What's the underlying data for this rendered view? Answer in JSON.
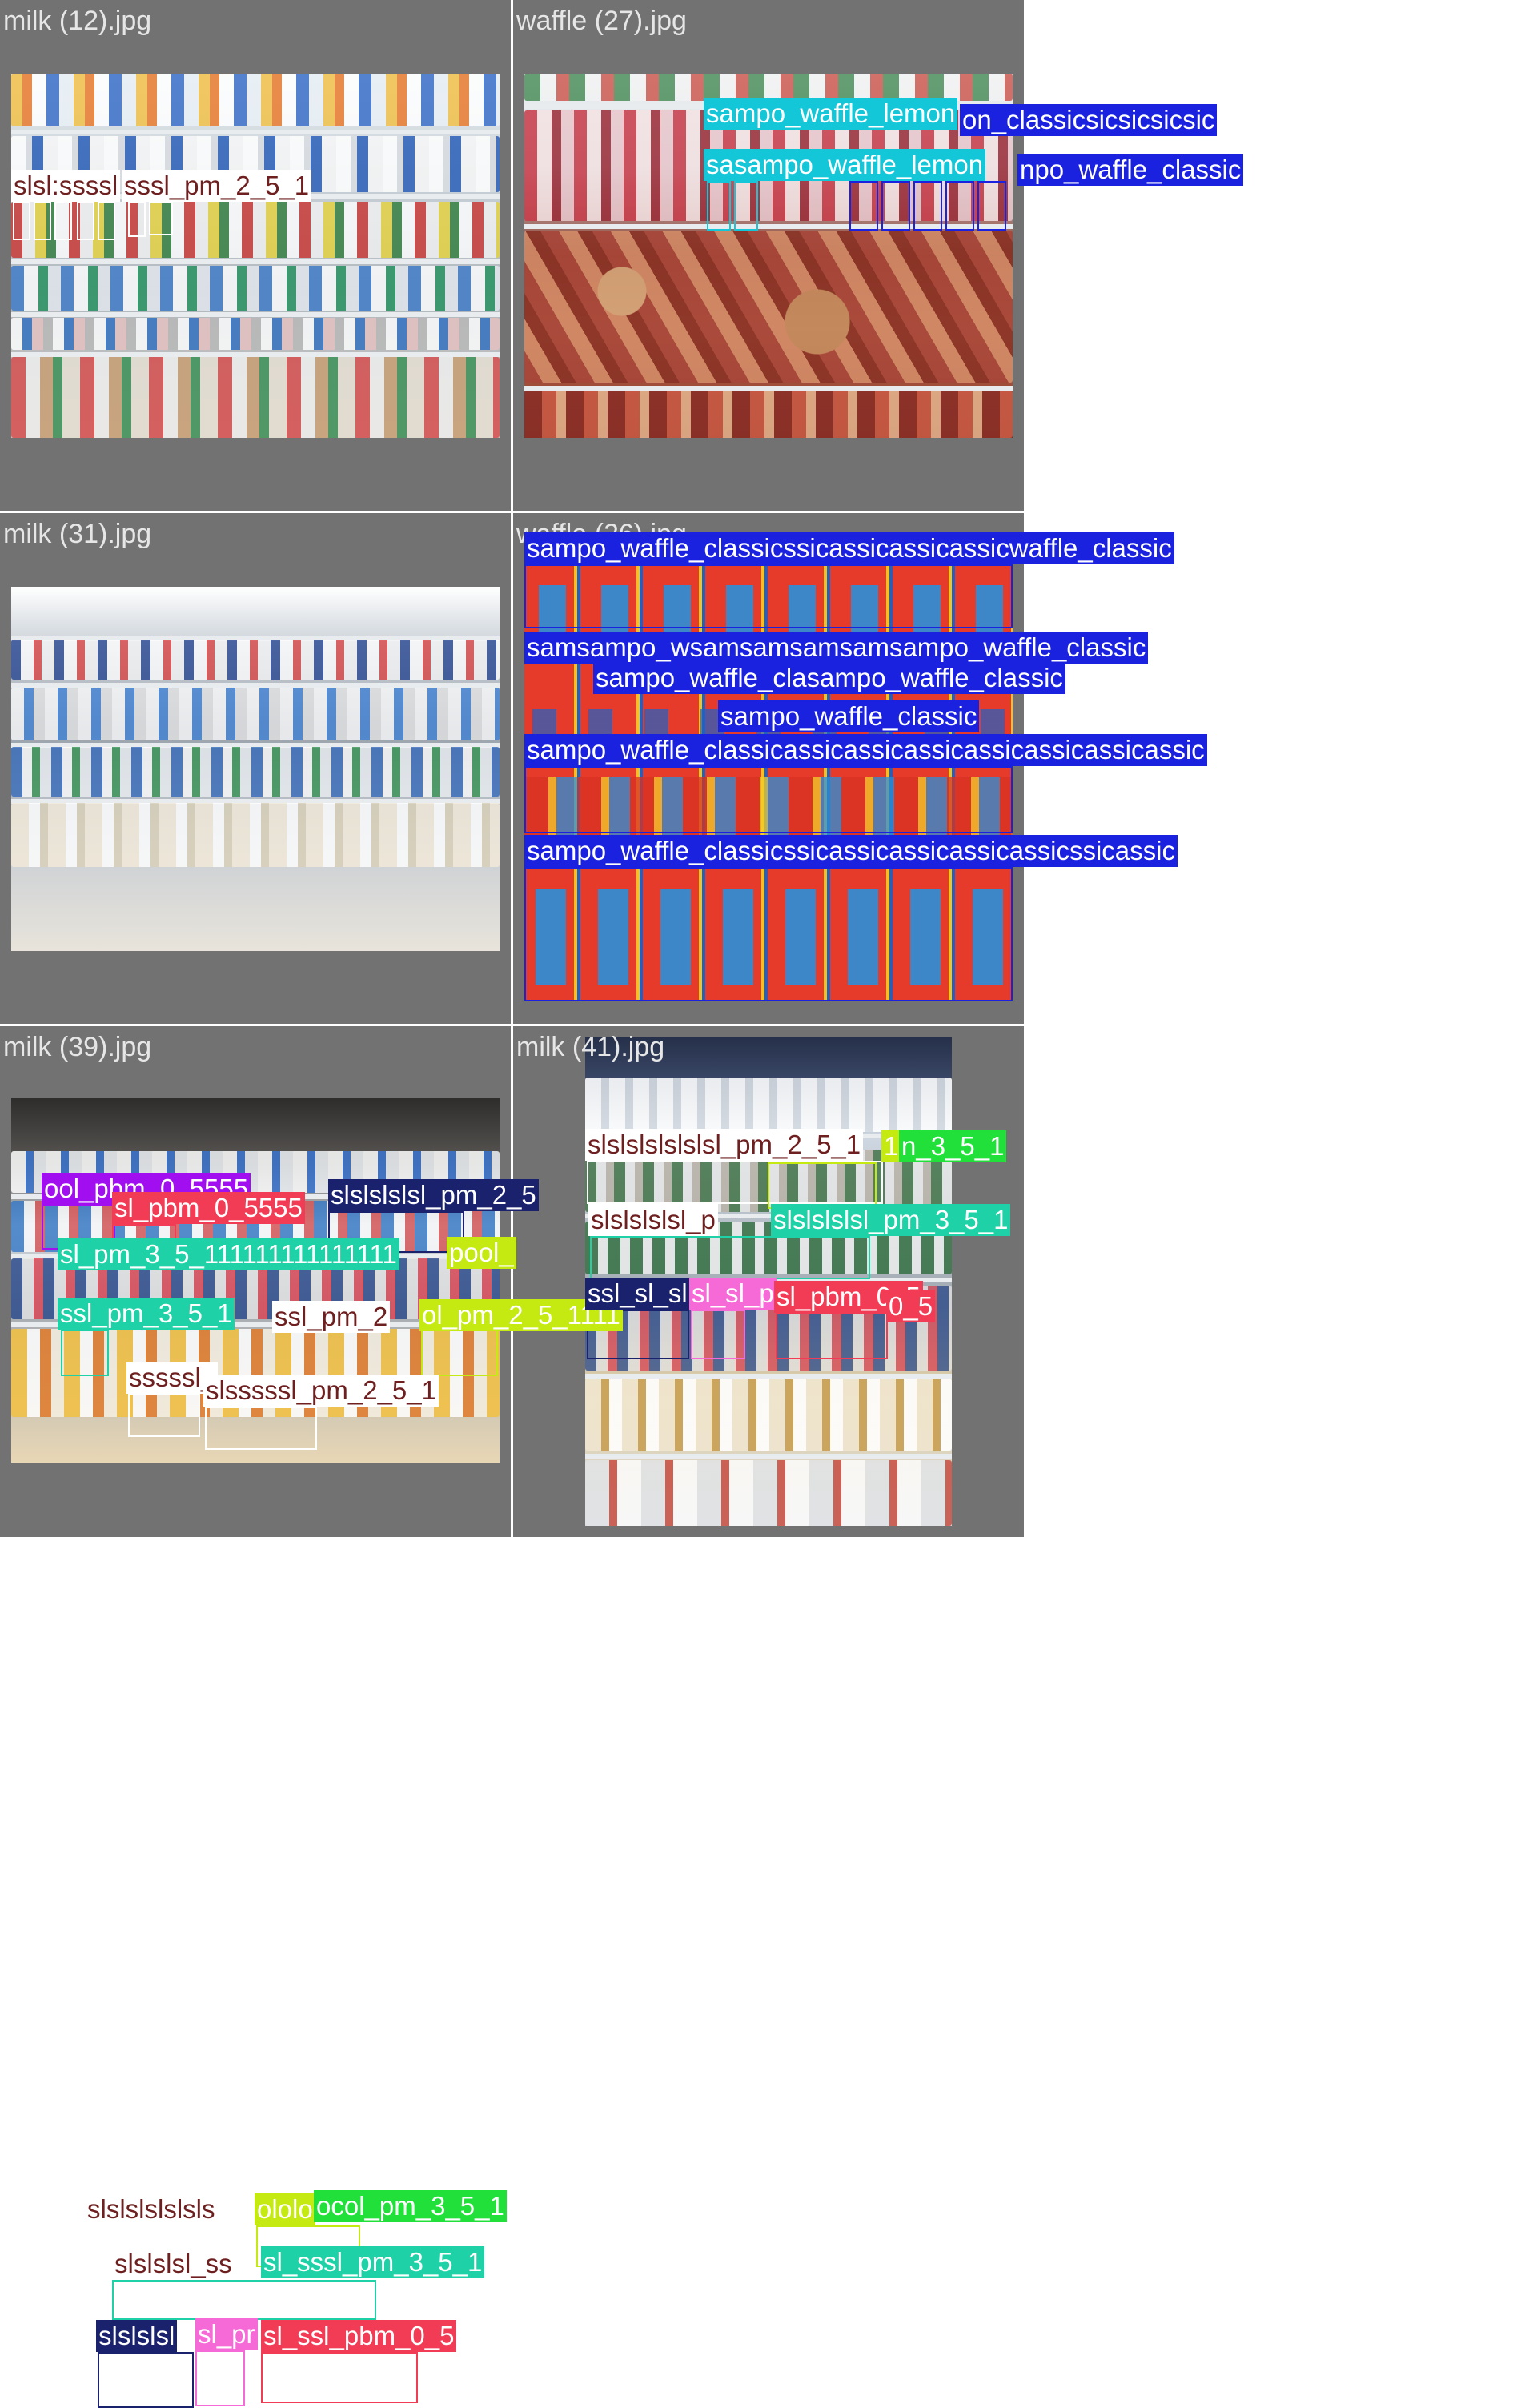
{
  "grid": {
    "cells": [
      {
        "title": "milk (12).jpg",
        "labels": [
          {
            "text": "slsl:ssssl",
            "color": "#ffffff",
            "fg": "#6e1f1f"
          },
          {
            "text": "sssl_pm_2_5_1",
            "color": "#ffffff",
            "fg": "#6e1f1f"
          }
        ]
      },
      {
        "title": "waffle (27).jpg",
        "labels": [
          {
            "text": "sampo_waffle_lemon",
            "color": "#13c7d8",
            "fg": "#ffffff"
          },
          {
            "text": "on_classicsicsicsicsic",
            "color": "#1a22e0",
            "fg": "#ffffff"
          },
          {
            "text": "sasampo_waffle_lemon",
            "color": "#13c7d8",
            "fg": "#ffffff"
          },
          {
            "text": "npo_waffle_classic",
            "color": "#1a22e0",
            "fg": "#ffffff"
          }
        ]
      },
      {
        "title": "milk (31).jpg",
        "labels": [
          {
            "text": "ool_pbm_0_5555",
            "color": "#a10ff0",
            "fg": "#ffffff"
          },
          {
            "text": "sl_pbm_0_5555",
            "color": "#f23b55",
            "fg": "#ffffff"
          },
          {
            "text": "slslslslsl_pm_2_5",
            "color": "#1a226e",
            "fg": "#ffffff"
          },
          {
            "text": "sl_pm_3_5_111111111111111",
            "color": "#1fd1a6",
            "fg": "#ffffff"
          },
          {
            "text": "pool_",
            "color": "#c5ea12",
            "fg": "#ffffff"
          },
          {
            "text": "ssl_pm_3_5_1",
            "color": "#1fd1a6",
            "fg": "#ffffff"
          },
          {
            "text": "ssl_pm_2",
            "color": "#ffffff",
            "fg": "#6e1f1f"
          },
          {
            "text": "ol_pm_2_5_1111",
            "color": "#c5ea12",
            "fg": "#ffffff"
          },
          {
            "text": "sssssl_",
            "color": "#ffffff",
            "fg": "#6e1f1f"
          },
          {
            "text": "slsssssl_pm_2_5_1",
            "color": "#ffffff",
            "fg": "#6e1f1f"
          }
        ]
      },
      {
        "title": "waffle (26).jpg",
        "labels": [
          {
            "text": "sampo_waffle_classicssicassicassicassicwaffle_classic",
            "color": "#1a22e0",
            "fg": "#ffffff"
          },
          {
            "text": "samsampo_wsamsamsamsamsampo_waffle_classic",
            "color": "#1a22e0",
            "fg": "#ffffff"
          },
          {
            "text": "sampo_waffle_clasampo_waffle_classic",
            "color": "#1a22e0",
            "fg": "#ffffff"
          },
          {
            "text": "sampo_waffle_classic",
            "color": "#1a22e0",
            "fg": "#ffffff"
          },
          {
            "text": "sampo_waffle_classicassicassicassicassicassicassicassic",
            "color": "#1a22e0",
            "fg": "#ffffff"
          },
          {
            "text": "sampo_waffle_classicssicassicassicassicassicssicassic",
            "color": "#1a22e0",
            "fg": "#ffffff"
          }
        ]
      },
      {
        "title": "milk (39).jpg",
        "labels": [
          {
            "text": "slslslslslsls",
            "color": "#ffffff",
            "fg": "#6e1f1f"
          },
          {
            "text": "ololo",
            "color": "#c5ea12",
            "fg": "#ffffff"
          },
          {
            "text": "ocol_pm_3_5_1",
            "color": "#22e03a",
            "fg": "#ffffff"
          },
          {
            "text": "slslslsl_ss",
            "color": "#ffffff",
            "fg": "#6e1f1f"
          },
          {
            "text": "sl_sssl_pm_3_5_1",
            "color": "#1fd1a6",
            "fg": "#ffffff"
          },
          {
            "text": "slslslsl",
            "color": "#1a226e",
            "fg": "#ffffff"
          },
          {
            "text": "sl_pr",
            "color": "#f56ad6",
            "fg": "#ffffff"
          },
          {
            "text": "sl_ssl_pbm_0_5",
            "color": "#f23b55",
            "fg": "#ffffff"
          }
        ]
      },
      {
        "title": "milk (41).jpg",
        "labels": [
          {
            "text": "slslslslslslsl_pm_2_5_1",
            "color": "#ffffff",
            "fg": "#6e1f1f"
          },
          {
            "text": "1",
            "color": "#c5ea12",
            "fg": "#ffffff"
          },
          {
            "text": "n_3_5_1",
            "color": "#22e03a",
            "fg": "#ffffff"
          },
          {
            "text": "slslslslsl_p",
            "color": "#ffffff",
            "fg": "#6e1f1f"
          },
          {
            "text": "slslslslsl_pm_3_5_1",
            "color": "#1fd1a6",
            "fg": "#ffffff"
          },
          {
            "text": "ssl_sl_sl",
            "color": "#1a226e",
            "fg": "#ffffff"
          },
          {
            "text": "sl_sl_p",
            "color": "#f56ad6",
            "fg": "#ffffff"
          },
          {
            "text": "sl_pbm_0_5",
            "color": "#f23b55",
            "fg": "#ffffff"
          },
          {
            "text": "0_5",
            "color": "#f23b55",
            "fg": "#ffffff"
          }
        ]
      }
    ]
  }
}
